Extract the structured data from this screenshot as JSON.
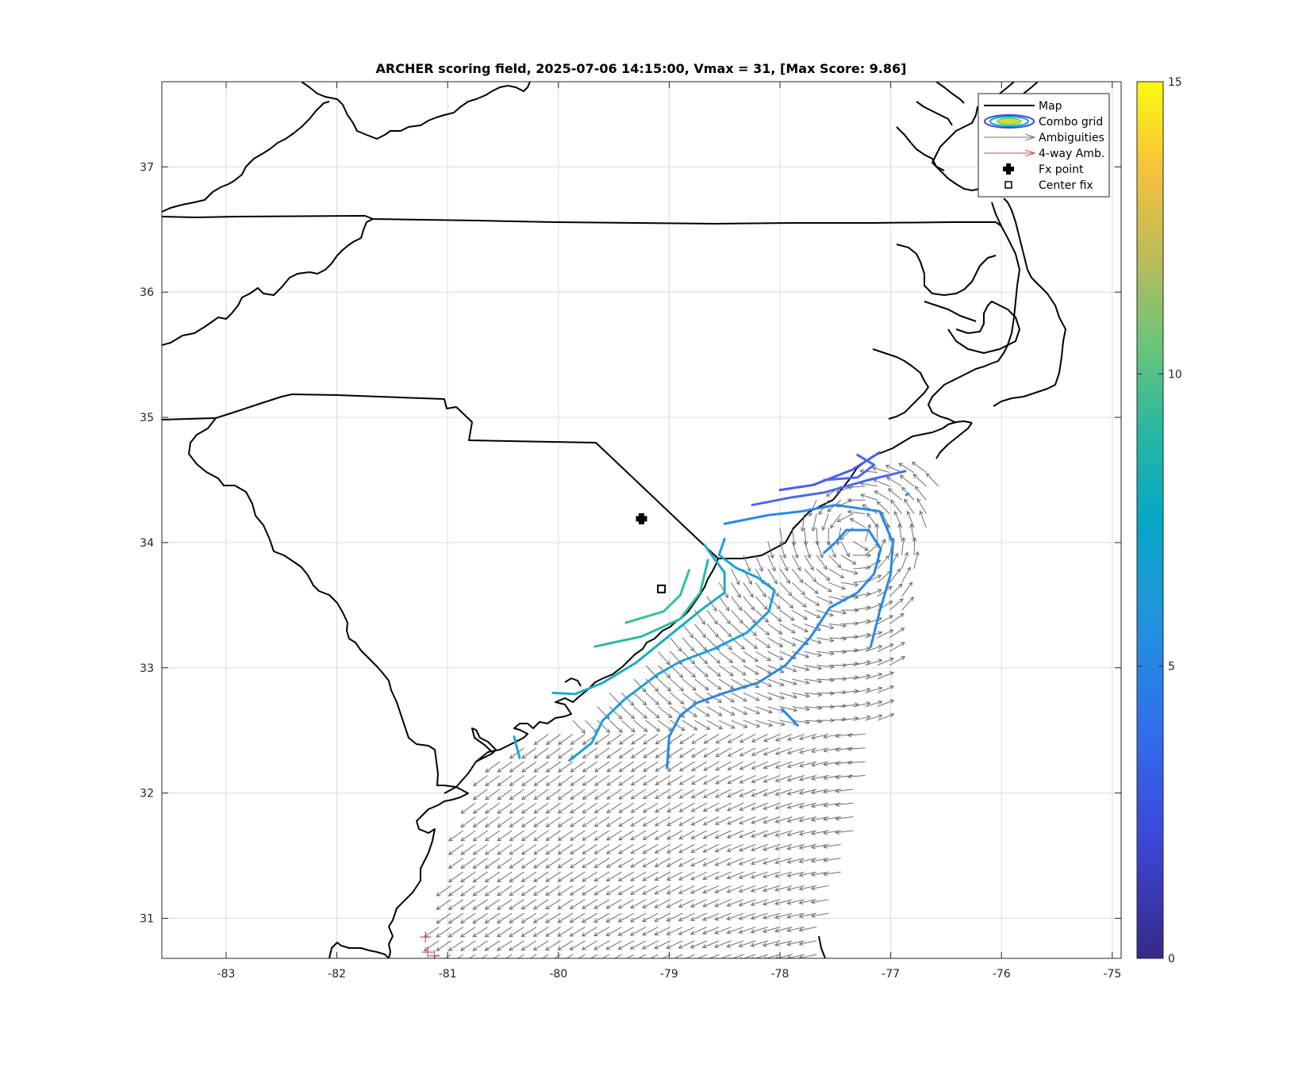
{
  "chart_data": {
    "type": "contour_quiver_map",
    "title": "ARCHER scoring field, 2025-07-06 14:15:00, Vmax = 31, [Max Score: 9.86]",
    "xlim": [
      -83.58,
      -74.92
    ],
    "ylim": [
      30.68,
      37.68
    ],
    "x_ticks": [
      "-83",
      "-82",
      "-81",
      "-80",
      "-79",
      "-78",
      "-77",
      "-76",
      "-75"
    ],
    "x_tick_values": [
      -83,
      -82,
      -81,
      -80,
      -79,
      -78,
      -77,
      -76,
      -75
    ],
    "y_ticks": [
      "31",
      "32",
      "33",
      "34",
      "35",
      "36",
      "37"
    ],
    "y_tick_values": [
      31,
      32,
      33,
      34,
      35,
      36,
      37
    ],
    "grid": true,
    "colorbar": {
      "min": 0,
      "max": 15,
      "ticks": [
        "0",
        "5",
        "10",
        "15"
      ],
      "tick_values": [
        0,
        5,
        10,
        15
      ],
      "colormap": "parula"
    },
    "legend": {
      "placement": "top-right",
      "entries": [
        {
          "label": "Map",
          "symbol": "black-line"
        },
        {
          "label": "Combo grid",
          "symbol": "contour-ellipse"
        },
        {
          "label": "Ambiguities",
          "symbol": "gray-arrow"
        },
        {
          "label": "4-way Amb.",
          "symbol": "red-arrow"
        },
        {
          "label": "Fx point",
          "symbol": "plus-marker"
        },
        {
          "label": "Center fix",
          "symbol": "square-marker"
        }
      ]
    },
    "fx_point": {
      "lon": -79.25,
      "lat": 34.19
    },
    "center_fix": {
      "lon": -79.07,
      "lat": 33.63
    },
    "contours": [
      {
        "level": 8.5,
        "color": "#37c197",
        "points": [
          [
            -79.39,
            33.36
          ],
          [
            -79.05,
            33.45
          ],
          [
            -78.9,
            33.58
          ],
          [
            -78.82,
            33.78
          ]
        ]
      },
      {
        "level": 8.0,
        "color": "#2cb9a2",
        "points": [
          [
            -79.67,
            33.17
          ],
          [
            -79.25,
            33.25
          ],
          [
            -78.9,
            33.39
          ],
          [
            -78.72,
            33.6
          ],
          [
            -78.65,
            33.86
          ]
        ]
      },
      {
        "level": 7.0,
        "color": "#1eaac3",
        "points": [
          [
            -80.05,
            32.8
          ],
          [
            -79.85,
            32.79
          ],
          [
            -79.6,
            32.88
          ],
          [
            -79.3,
            33.04
          ],
          [
            -79.05,
            33.22
          ],
          [
            -78.7,
            33.47
          ],
          [
            -78.5,
            33.6
          ],
          [
            -78.5,
            33.76
          ],
          [
            -78.6,
            33.88
          ],
          [
            -78.68,
            33.98
          ]
        ]
      },
      {
        "level": 6.0,
        "color": "#1b9fd9",
        "points": [
          [
            -79.9,
            32.26
          ],
          [
            -79.7,
            32.4
          ],
          [
            -79.6,
            32.58
          ],
          [
            -79.4,
            32.75
          ],
          [
            -79.1,
            32.95
          ],
          [
            -78.9,
            33.05
          ],
          [
            -78.6,
            33.15
          ],
          [
            -78.3,
            33.28
          ],
          [
            -78.1,
            33.45
          ],
          [
            -78.05,
            33.62
          ],
          [
            -78.2,
            33.72
          ],
          [
            -78.4,
            33.8
          ],
          [
            -78.55,
            33.9
          ],
          [
            -78.5,
            34.03
          ]
        ]
      },
      {
        "level": 5.0,
        "color": "#2689e6",
        "points": [
          [
            -79.02,
            32.2
          ],
          [
            -79.0,
            32.45
          ],
          [
            -78.9,
            32.62
          ],
          [
            -78.75,
            32.72
          ],
          [
            -78.5,
            32.8
          ],
          [
            -78.2,
            32.88
          ],
          [
            -77.95,
            33.02
          ],
          [
            -77.72,
            33.25
          ],
          [
            -77.55,
            33.48
          ],
          [
            -77.3,
            33.6
          ],
          [
            -77.15,
            33.75
          ],
          [
            -77.09,
            33.95
          ],
          [
            -77.2,
            34.1
          ],
          [
            -77.4,
            34.1
          ],
          [
            -77.5,
            34.0
          ],
          [
            -77.6,
            33.92
          ]
        ]
      },
      {
        "level": 5.0,
        "color": "#2689e6",
        "points": [
          [
            -77.18,
            33.17
          ],
          [
            -77.1,
            33.45
          ],
          [
            -77.0,
            33.75
          ],
          [
            -76.98,
            34.0
          ],
          [
            -77.1,
            34.25
          ],
          [
            -77.5,
            34.3
          ],
          [
            -77.8,
            34.25
          ],
          [
            -78.1,
            34.22
          ],
          [
            -78.5,
            34.15
          ]
        ]
      },
      {
        "level": 5.0,
        "color": "#2689e6",
        "points": [
          [
            -77.98,
            32.67
          ],
          [
            -77.84,
            32.54
          ]
        ]
      },
      {
        "level": 5.0,
        "color": "#2689e6",
        "points": [
          [
            -76.84,
            34.39
          ],
          [
            -76.86,
            34.38
          ]
        ]
      },
      {
        "level": 6.5,
        "color": "#1ea6cd",
        "points": [
          [
            -80.4,
            32.45
          ],
          [
            -80.35,
            32.28
          ]
        ]
      },
      {
        "level": 3.5,
        "color": "#4a68f2",
        "points": [
          [
            -78.25,
            34.3
          ],
          [
            -77.9,
            34.36
          ],
          [
            -77.6,
            34.4
          ],
          [
            -77.2,
            34.5
          ],
          [
            -76.87,
            34.57
          ]
        ]
      },
      {
        "level": 3.0,
        "color": "#4a5ef0",
        "points": [
          [
            -78,
            34.42
          ],
          [
            -77.7,
            34.46
          ],
          [
            -77.35,
            34.58
          ],
          [
            -77.1,
            34.72
          ]
        ]
      },
      {
        "level": 3.5,
        "color": "#4a68f2",
        "points": [
          [
            -77.6,
            34.5
          ],
          [
            -77.3,
            34.52
          ],
          [
            -77.15,
            34.62
          ],
          [
            -77.3,
            34.7
          ]
        ]
      }
    ],
    "swath": {
      "polygon": [
        [
          -81.15,
          30.68
        ],
        [
          -80.85,
          31.8
        ],
        [
          -80.6,
          32.25
        ],
        [
          -80.1,
          32.5
        ],
        [
          -79.55,
          32.8
        ],
        [
          -79.0,
          33.3
        ],
        [
          -78.6,
          33.7
        ],
        [
          -78.2,
          34.0
        ],
        [
          -77.7,
          34.35
        ],
        [
          -77.2,
          34.55
        ],
        [
          -76.85,
          34.6
        ],
        [
          -76.6,
          34.55
        ],
        [
          -76.55,
          34.4
        ],
        [
          -76.75,
          33.9
        ],
        [
          -76.95,
          33.2
        ],
        [
          -77.25,
          32.0
        ],
        [
          -77.55,
          31.0
        ],
        [
          -77.65,
          30.68
        ]
      ],
      "vector_spacing_deg": 0.11,
      "color": "#6e6e6e"
    },
    "four_way_ambiguities": [
      {
        "lon": -81.2,
        "lat": 30.85
      },
      {
        "lon": -81.18,
        "lat": 30.73
      },
      {
        "lon": -81.12,
        "lat": 30.7
      }
    ]
  }
}
